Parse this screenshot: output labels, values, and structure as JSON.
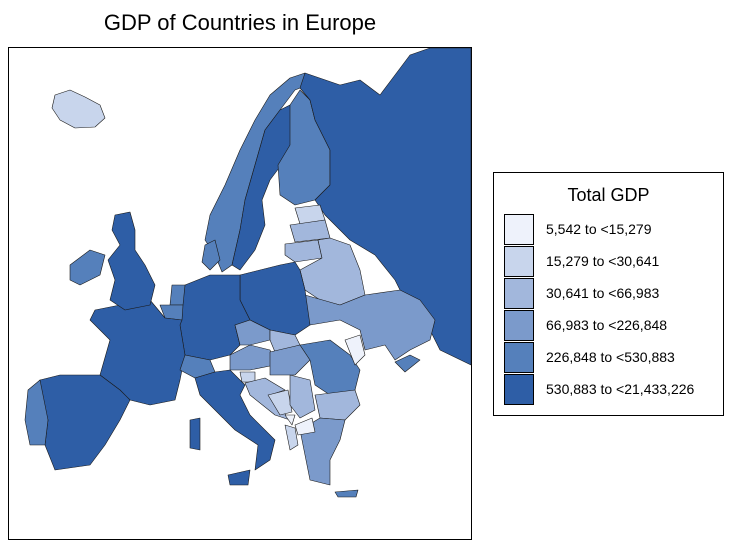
{
  "title": "GDP of Countries in Europe",
  "legend": {
    "title": "Total GDP",
    "classes": [
      {
        "label": "5,542 to <15,279",
        "color": "#eef2fb"
      },
      {
        "label": "15,279 to <30,641",
        "color": "#c8d5ec"
      },
      {
        "label": "30,641 to <66,983",
        "color": "#a2b7dc"
      },
      {
        "label": "66,983 to <226,848",
        "color": "#7b9acb"
      },
      {
        "label": "226,848 to <530,883",
        "color": "#5580bb"
      },
      {
        "label": "530,883 to <21,433,226",
        "color": "#2e5ea6"
      }
    ]
  }
}
